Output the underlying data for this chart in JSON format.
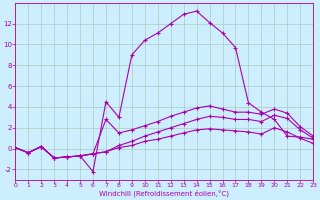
{
  "xlabel": "Windchill (Refroidissement éolien,°C)",
  "background_color": "#cceeff",
  "grid_color": "#aaccbb",
  "line_color": "#aa00aa",
  "ylim": [
    -3,
    14
  ],
  "xlim": [
    0,
    23
  ],
  "yticks": [
    -2,
    0,
    2,
    4,
    6,
    8,
    10,
    12
  ],
  "xticks": [
    0,
    1,
    2,
    3,
    4,
    5,
    6,
    7,
    8,
    9,
    10,
    11,
    12,
    13,
    14,
    15,
    16,
    17,
    18,
    19,
    20,
    21,
    22,
    23
  ],
  "line_big": [
    0.1,
    -0.4,
    0.2,
    -0.9,
    -0.8,
    -0.7,
    -2.2,
    4.5,
    3.0,
    9.0,
    10.4,
    11.1,
    12.0,
    12.9,
    13.2,
    12.1,
    11.1,
    9.7,
    4.4,
    3.5,
    2.8,
    1.2,
    1.1,
    0.9
  ],
  "line_mid": [
    0.1,
    -0.4,
    0.2,
    -0.9,
    -0.8,
    -0.7,
    -0.5,
    2.8,
    1.5,
    1.8,
    2.2,
    2.6,
    3.1,
    3.5,
    3.9,
    4.1,
    3.8,
    3.5,
    3.5,
    3.3,
    3.8,
    3.4,
    2.1,
    1.2
  ],
  "line_low1": [
    0.1,
    -0.4,
    0.2,
    -0.9,
    -0.8,
    -0.7,
    -0.5,
    -0.3,
    0.3,
    0.7,
    1.2,
    1.6,
    2.0,
    2.4,
    2.8,
    3.1,
    3.0,
    2.8,
    2.8,
    2.6,
    3.2,
    2.9,
    1.8,
    1.0
  ],
  "line_low2": [
    0.1,
    -0.4,
    0.2,
    -0.9,
    -0.8,
    -0.7,
    -0.5,
    -0.3,
    0.1,
    0.3,
    0.7,
    0.9,
    1.2,
    1.5,
    1.8,
    1.9,
    1.8,
    1.7,
    1.6,
    1.4,
    2.0,
    1.6,
    1.0,
    0.5
  ]
}
